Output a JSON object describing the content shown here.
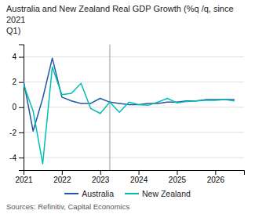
{
  "chart_data": {
    "type": "line",
    "title": "Australia and New Zealand Real GDP Growth (%q /q, since 2021\nQ1)",
    "annotations": [
      "Sources: Refinitiv, Capital Economics"
    ],
    "x": [
      2021,
      2021.25,
      2021.5,
      2021.75,
      2022,
      2022.25,
      2022.5,
      2022.75,
      2023,
      2023.25,
      2023.5,
      2023.75,
      2024,
      2024.25,
      2024.5,
      2024.75,
      2025,
      2025.25,
      2025.5,
      2025.75,
      2026,
      2026.25,
      2026.5
    ],
    "series": [
      {
        "name": "Australia",
        "color": "#2356a8",
        "values": [
          2.1,
          -1.9,
          0.7,
          3.9,
          0.8,
          0.5,
          0.3,
          0.3,
          0.7,
          0.4,
          0.3,
          0.2,
          0.2,
          0.3,
          0.3,
          0.4,
          0.4,
          0.5,
          0.5,
          0.6,
          0.6,
          0.6,
          0.6
        ]
      },
      {
        "name": "New Zealand",
        "color": "#00bfb2",
        "values": [
          1.8,
          -0.3,
          -4.5,
          3.2,
          1.0,
          1.1,
          1.9,
          -0.1,
          -0.5,
          0.4,
          -0.4,
          0.4,
          0.2,
          0.15,
          0.4,
          0.7,
          0.35,
          0.45,
          0.5,
          0.55,
          0.55,
          0.6,
          0.5
        ]
      }
    ],
    "vline": 2023.25,
    "xlim": [
      2021,
      2026.75
    ],
    "xticks": [
      2021,
      2022,
      2023,
      2024,
      2025,
      2026
    ],
    "ylim": [
      -5,
      5
    ],
    "yticks": [
      -4,
      -2,
      0,
      2,
      4
    ],
    "grid": "y",
    "legend": "bottom"
  }
}
